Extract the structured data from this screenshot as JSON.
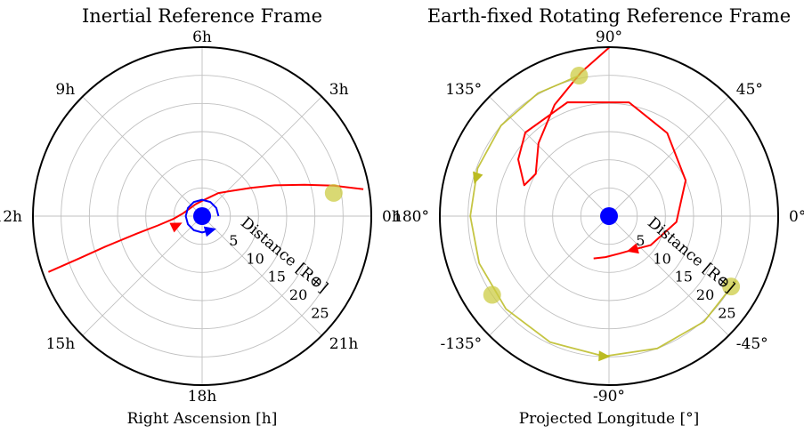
{
  "chart_data": [
    {
      "type": "polar",
      "title": "Inertial Reference Frame",
      "xlabel": "Right Ascension [h]",
      "rlabel": "Distance [R⊕]",
      "rlim": [
        0,
        30
      ],
      "rticks": [
        5,
        10,
        15,
        20,
        25
      ],
      "rtick_labels": [
        "5",
        "10",
        "15",
        "20",
        "25"
      ],
      "theta_ticks": [
        0,
        45,
        90,
        135,
        180,
        225,
        270,
        315
      ],
      "theta_tick_labels": [
        "0h",
        "3h",
        "6h",
        "9h",
        "12h",
        "15h",
        "18h",
        "21h"
      ],
      "grid": true,
      "colors": {
        "trajectory": "#ff0000",
        "earth": "#0000ff",
        "moon": "#cccc44",
        "grid": "#c0c0c0"
      },
      "series": [
        {
          "role": "trajectory",
          "points": [
            [
              29.0,
              200
            ],
            [
              23.0,
              199
            ],
            [
              18.0,
              197.5
            ],
            [
              12.0,
              195
            ],
            [
              8.0,
              192
            ],
            [
              5.0,
              185
            ],
            [
              3.5,
              173
            ],
            [
              2.6,
              150
            ],
            [
              2.4,
              120
            ],
            [
              2.7,
              90
            ],
            [
              3.5,
              70
            ],
            [
              5.0,
              55
            ],
            [
              7.0,
              40
            ],
            [
              10.0,
              30
            ],
            [
              14.0,
              23
            ],
            [
              19.0,
              17
            ],
            [
              24.0,
              13
            ],
            [
              29.0,
              9.5
            ]
          ],
          "arrow_at": {
            "r": 4.8,
            "theta": 200
          }
        },
        {
          "role": "earth_rotation",
          "points": [
            [
              2.9,
              0
            ],
            [
              2.9,
              30
            ],
            [
              2.9,
              60
            ],
            [
              2.9,
              90
            ],
            [
              2.9,
              120
            ],
            [
              2.9,
              150
            ],
            [
              2.9,
              180
            ],
            [
              2.9,
              210
            ],
            [
              2.9,
              240
            ],
            [
              2.9,
              270
            ],
            [
              2.9,
              300
            ]
          ],
          "arrow_at": {
            "r": 2.9,
            "theta": 300
          }
        },
        {
          "role": "earth",
          "points": [
            [
              0,
              0
            ]
          ]
        },
        {
          "role": "moon",
          "points": [
            [
              23.7,
              10
            ]
          ]
        }
      ]
    },
    {
      "type": "polar",
      "title": "Earth-fixed Rotating Reference Frame",
      "xlabel": "Projected Longitude [°]",
      "rlabel": "Distance [R⊕]",
      "rlim": [
        0,
        30
      ],
      "rticks": [
        5,
        10,
        15,
        20,
        25
      ],
      "rtick_labels": [
        "5",
        "10",
        "15",
        "20",
        "25"
      ],
      "theta_ticks": [
        0,
        45,
        90,
        135,
        180,
        225,
        270,
        315
      ],
      "theta_tick_labels": [
        "0°",
        "45°",
        "90°",
        "135°",
        "180°",
        "-135°",
        "-90°",
        "-45°"
      ],
      "grid": true,
      "colors": {
        "trajectory": "#ff0000",
        "earth": "#0000ff",
        "moon": "#cccc44",
        "moon_track": "#bbbb22",
        "grid": "#c0c0c0"
      },
      "series": [
        {
          "role": "trajectory",
          "points": [
            [
              30.0,
              89.8
            ],
            [
              26.0,
              101
            ],
            [
              22.0,
              116
            ],
            [
              18.0,
              134
            ],
            [
              15.0,
              150
            ],
            [
              16.0,
              160
            ],
            [
              19.0,
              148
            ],
            [
              21.0,
              135
            ],
            [
              21.5,
              110
            ],
            [
              20.5,
              80
            ],
            [
              18.0,
              55
            ],
            [
              15.0,
              25
            ],
            [
              12.0,
              -5
            ],
            [
              9.0,
              -35
            ],
            [
              7.3,
              -55
            ],
            [
              6.9,
              -75
            ],
            [
              7.3,
              -95
            ],
            [
              8.0,
              -110
            ]
          ],
          "arrow_at": {
            "r": 7.3,
            "theta": -55
          }
        },
        {
          "role": "moon_track",
          "points": [
            [
              25.5,
              102
            ],
            [
              25.2,
              120
            ],
            [
              25.0,
              140
            ],
            [
              24.8,
              160
            ],
            [
              24.6,
              180
            ],
            [
              24.5,
              200
            ],
            [
              24.6,
              222
            ],
            [
              24.7,
              245
            ],
            [
              24.9,
              268
            ],
            [
              25.0,
              290
            ],
            [
              25.2,
              312
            ],
            [
              25.3,
              333
            ]
          ],
          "arrow_at": [
            {
              "r": 24.5,
              "theta": 164
            },
            {
              "r": 24.9,
              "theta": 268
            }
          ]
        },
        {
          "role": "earth",
          "points": [
            [
              0,
              0
            ]
          ]
        },
        {
          "role": "moon",
          "points": [
            [
              25.5,
              102
            ],
            [
              25.0,
              214
            ],
            [
              25.0,
              330
            ]
          ]
        }
      ]
    }
  ]
}
